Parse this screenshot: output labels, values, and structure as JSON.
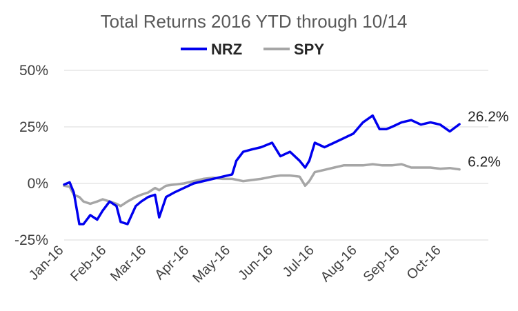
{
  "chart_data": {
    "type": "line",
    "title": "Total Returns 2016 YTD through 10/14",
    "xlabel": "",
    "ylabel": "",
    "ylim": [
      -25,
      50
    ],
    "yticks": [
      "50%",
      "25%",
      "0%",
      "-25%"
    ],
    "ytick_values": [
      50,
      25,
      0,
      -25
    ],
    "xticks": [
      "Jan-16",
      "Feb-16",
      "Mar-16",
      "Apr-16",
      "May-16",
      "Jun-16",
      "Jul-16",
      "Aug-16",
      "Sep-16",
      "Oct-16"
    ],
    "xtick_dates": [
      "2016-01-01",
      "2016-02-01",
      "2016-03-01",
      "2016-04-01",
      "2016-05-01",
      "2016-06-01",
      "2016-07-01",
      "2016-08-01",
      "2016-09-01",
      "2016-10-01"
    ],
    "xlim": [
      "2016-01-01",
      "2016-11-04"
    ],
    "grid": "horizontal",
    "legend_position": "top",
    "series": [
      {
        "name": "NRZ",
        "color": "#0000ee",
        "end_label": "26.2%",
        "x": [
          "2016-01-01",
          "2016-01-05",
          "2016-01-08",
          "2016-01-12",
          "2016-01-15",
          "2016-01-20",
          "2016-01-25",
          "2016-01-29",
          "2016-02-03",
          "2016-02-08",
          "2016-02-11",
          "2016-02-16",
          "2016-02-22",
          "2016-02-26",
          "2016-03-02",
          "2016-03-07",
          "2016-03-10",
          "2016-03-15",
          "2016-03-21",
          "2016-03-28",
          "2016-04-04",
          "2016-04-11",
          "2016-04-18",
          "2016-04-25",
          "2016-05-02",
          "2016-05-05",
          "2016-05-10",
          "2016-05-16",
          "2016-05-23",
          "2016-05-31",
          "2016-06-06",
          "2016-06-13",
          "2016-06-20",
          "2016-06-24",
          "2016-06-27",
          "2016-07-01",
          "2016-07-08",
          "2016-07-15",
          "2016-07-22",
          "2016-07-29",
          "2016-08-05",
          "2016-08-12",
          "2016-08-17",
          "2016-08-22",
          "2016-08-26",
          "2016-09-02",
          "2016-09-09",
          "2016-09-16",
          "2016-09-23",
          "2016-09-30",
          "2016-10-07",
          "2016-10-14"
        ],
        "values": [
          -0.5,
          0.5,
          -4,
          -18,
          -18,
          -14,
          -16,
          -12,
          -8,
          -10,
          -17,
          -18,
          -10,
          -8,
          -6,
          -5,
          -15,
          -6,
          -4,
          -2,
          0,
          1,
          2,
          3,
          4,
          10,
          14,
          15,
          16,
          18,
          12,
          14,
          10,
          7,
          10,
          18,
          16,
          18,
          20,
          22,
          27,
          30,
          24,
          24,
          25,
          27,
          28,
          26,
          27,
          26,
          23,
          26.2
        ]
      },
      {
        "name": "SPY",
        "color": "#a6a6a6",
        "end_label": "6.2%",
        "x": [
          "2016-01-01",
          "2016-01-05",
          "2016-01-08",
          "2016-01-12",
          "2016-01-15",
          "2016-01-20",
          "2016-01-25",
          "2016-01-29",
          "2016-02-03",
          "2016-02-08",
          "2016-02-11",
          "2016-02-16",
          "2016-02-22",
          "2016-02-26",
          "2016-03-02",
          "2016-03-07",
          "2016-03-10",
          "2016-03-15",
          "2016-03-21",
          "2016-03-28",
          "2016-04-04",
          "2016-04-11",
          "2016-04-18",
          "2016-04-25",
          "2016-05-02",
          "2016-05-10",
          "2016-05-16",
          "2016-05-23",
          "2016-05-31",
          "2016-06-06",
          "2016-06-13",
          "2016-06-20",
          "2016-06-24",
          "2016-06-27",
          "2016-07-01",
          "2016-07-08",
          "2016-07-15",
          "2016-07-22",
          "2016-07-29",
          "2016-08-05",
          "2016-08-12",
          "2016-08-19",
          "2016-08-26",
          "2016-09-02",
          "2016-09-09",
          "2016-09-16",
          "2016-09-23",
          "2016-09-30",
          "2016-10-07",
          "2016-10-14"
        ],
        "values": [
          -1,
          -1.5,
          -5,
          -6,
          -8,
          -9,
          -8,
          -7,
          -8,
          -9,
          -10,
          -8,
          -6,
          -5,
          -4,
          -2,
          -3,
          -1,
          -0.5,
          0,
          1,
          2,
          2.5,
          2,
          2,
          1,
          1.5,
          2,
          3,
          3.5,
          3.5,
          3,
          -1,
          1,
          5,
          6,
          7,
          8,
          8,
          8,
          8.5,
          8,
          8,
          8.5,
          7,
          7,
          7,
          6.5,
          6.8,
          6.2
        ]
      }
    ]
  }
}
